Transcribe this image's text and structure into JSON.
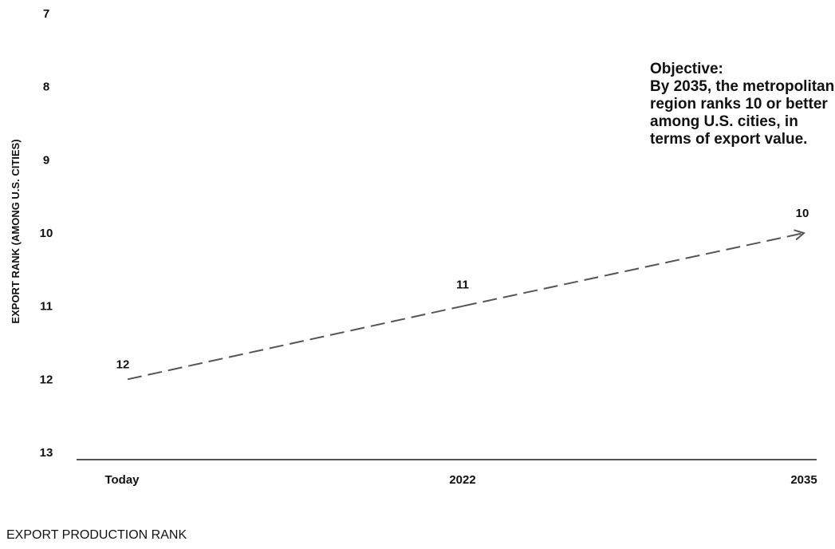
{
  "chart_data": {
    "type": "line",
    "ylabel": "EXPORT RANK (AMONG U.S. CITIES)",
    "xlabel": "",
    "categories": [
      "Today",
      "2022",
      "2035"
    ],
    "y_ticks": [
      7,
      8,
      9,
      10,
      11,
      12,
      13
    ],
    "ylim": [
      7,
      13
    ],
    "y_inverted": true,
    "series": [
      {
        "values": [
          12,
          11,
          10
        ],
        "data_labels": [
          "12",
          "11",
          "10"
        ],
        "style": "dashed",
        "end_marker": "arrow",
        "color": "#555555"
      }
    ],
    "annotation": {
      "heading": "Objective:",
      "text": "By 2035, the metropolitan region ranks 10 or better among U.S. cities, in terms of export value."
    },
    "grid": false
  },
  "footer_label": "EXPORT PRODUCTION RANK",
  "colors": {
    "axis": "#555555",
    "line": "#555555",
    "text": "#111111"
  }
}
